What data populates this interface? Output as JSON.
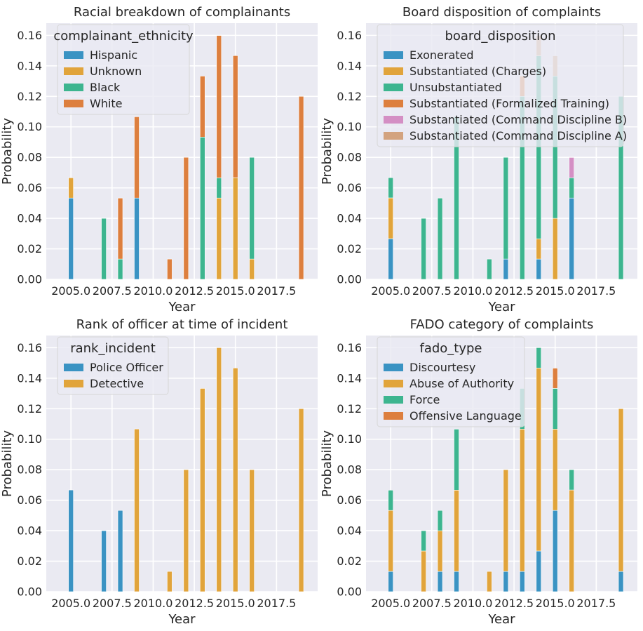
{
  "chart_data": [
    {
      "type": "bar",
      "title": "Racial breakdown of complainants",
      "xlabel": "Year",
      "ylabel": "Probability",
      "xlim": [
        2003.5,
        2020.0
      ],
      "ylim": [
        0,
        0.168
      ],
      "xticks": [
        2005.0,
        2007.5,
        2010.0,
        2012.5,
        2015.0,
        2017.5
      ],
      "xtick_labels": [
        "2005.0",
        "2007.5",
        "2010.0",
        "2012.5",
        "2015.0",
        "2017.5"
      ],
      "yticks": [
        0,
        0.02,
        0.04,
        0.06,
        0.08,
        0.1,
        0.12,
        0.14,
        0.16
      ],
      "ytick_labels": [
        "0.00",
        "0.02",
        "0.04",
        "0.06",
        "0.08",
        "0.10",
        "0.12",
        "0.14",
        "0.16"
      ],
      "grid": true,
      "legend_title": "complainant_ethnicity",
      "legend_position": "top-left",
      "bins": [
        2005,
        2007,
        2008,
        2009,
        2011,
        2012,
        2013,
        2014,
        2015,
        2016,
        2019
      ],
      "series": [
        {
          "name": "Hispanic",
          "color": "#3a93c3",
          "values": [
            0.0533,
            0,
            0,
            0.0533,
            0,
            0,
            0,
            0,
            0,
            0,
            0
          ]
        },
        {
          "name": "Unknown",
          "color": "#e1a43b",
          "values": [
            0.0133,
            0,
            0,
            0,
            0,
            0,
            0,
            0.0533,
            0.0667,
            0.0133,
            0
          ]
        },
        {
          "name": "Black",
          "color": "#3db58f",
          "values": [
            0,
            0.04,
            0.0133,
            0,
            0,
            0,
            0.0933,
            0.0133,
            0,
            0.0667,
            0
          ]
        },
        {
          "name": "White",
          "color": "#dd7f3e",
          "values": [
            0,
            0,
            0.04,
            0.0533,
            0.0133,
            0.08,
            0.04,
            0.0933,
            0.08,
            0,
            0.12
          ]
        }
      ]
    },
    {
      "type": "bar",
      "title": "Board disposition of complaints",
      "xlabel": "Year",
      "ylabel": "Probability",
      "xlim": [
        2003.5,
        2020.0
      ],
      "ylim": [
        0,
        0.168
      ],
      "xticks": [
        2005.0,
        2007.5,
        2010.0,
        2012.5,
        2015.0,
        2017.5
      ],
      "xtick_labels": [
        "2005.0",
        "2007.5",
        "2010.0",
        "2012.5",
        "2015.0",
        "2017.5"
      ],
      "yticks": [
        0,
        0.02,
        0.04,
        0.06,
        0.08,
        0.1,
        0.12,
        0.14,
        0.16
      ],
      "ytick_labels": [
        "0.00",
        "0.02",
        "0.04",
        "0.06",
        "0.08",
        "0.10",
        "0.12",
        "0.14",
        "0.16"
      ],
      "grid": true,
      "legend_title": "board_disposition",
      "legend_position": "top-right",
      "bins": [
        2005,
        2007,
        2008,
        2009,
        2011,
        2012,
        2013,
        2014,
        2015,
        2016,
        2019
      ],
      "series": [
        {
          "name": "Exonerated",
          "color": "#3a93c3",
          "values": [
            0.0267,
            0,
            0,
            0,
            0,
            0.0133,
            0,
            0.0133,
            0,
            0.0533,
            0
          ]
        },
        {
          "name": "Substantiated (Charges)",
          "color": "#e1a43b",
          "values": [
            0.0267,
            0,
            0,
            0,
            0,
            0,
            0,
            0.0133,
            0.04,
            0,
            0
          ]
        },
        {
          "name": "Unsubstantiated",
          "color": "#3db58f",
          "values": [
            0.0133,
            0.04,
            0.0533,
            0.1067,
            0.0133,
            0.0667,
            0.12,
            0.12,
            0.0933,
            0.0133,
            0.12
          ]
        },
        {
          "name": "Substantiated (Formalized Training)",
          "color": "#dd7f3e",
          "values": [
            0,
            0,
            0,
            0,
            0,
            0,
            0.0133,
            0,
            0,
            0,
            0
          ]
        },
        {
          "name": "Substantiated (Command Discipline B)",
          "color": "#d48fc4",
          "values": [
            0,
            0,
            0,
            0,
            0,
            0,
            0,
            0,
            0,
            0.0133,
            0
          ]
        },
        {
          "name": "Substantiated (Command Discipline A)",
          "color": "#d3a37f",
          "values": [
            0,
            0,
            0,
            0,
            0,
            0,
            0,
            0.0133,
            0.0133,
            0,
            0
          ]
        }
      ]
    },
    {
      "type": "bar",
      "title": "Rank of officer at time of incident",
      "xlabel": "Year",
      "ylabel": "Probability",
      "xlim": [
        2003.5,
        2020.0
      ],
      "ylim": [
        0,
        0.168
      ],
      "xticks": [
        2005.0,
        2007.5,
        2010.0,
        2012.5,
        2015.0,
        2017.5
      ],
      "xtick_labels": [
        "2005.0",
        "2007.5",
        "2010.0",
        "2012.5",
        "2015.0",
        "2017.5"
      ],
      "yticks": [
        0,
        0.02,
        0.04,
        0.06,
        0.08,
        0.1,
        0.12,
        0.14,
        0.16
      ],
      "ytick_labels": [
        "0.00",
        "0.02",
        "0.04",
        "0.06",
        "0.08",
        "0.10",
        "0.12",
        "0.14",
        "0.16"
      ],
      "grid": true,
      "legend_title": "rank_incident",
      "legend_position": "top-left",
      "bins": [
        2005,
        2007,
        2008,
        2009,
        2011,
        2012,
        2013,
        2014,
        2015,
        2016,
        2019
      ],
      "series": [
        {
          "name": "Police Officer",
          "color": "#3a93c3",
          "values": [
            0.0667,
            0.04,
            0.0533,
            0,
            0,
            0,
            0,
            0,
            0,
            0,
            0
          ]
        },
        {
          "name": "Detective",
          "color": "#e1a43b",
          "values": [
            0,
            0,
            0,
            0.1067,
            0.0133,
            0.08,
            0.1333,
            0.16,
            0.1467,
            0.08,
            0.12
          ]
        }
      ]
    },
    {
      "type": "bar",
      "title": "FADO category of complaints",
      "xlabel": "Year",
      "ylabel": "Probability",
      "xlim": [
        2003.5,
        2020.0
      ],
      "ylim": [
        0,
        0.168
      ],
      "xticks": [
        2005.0,
        2007.5,
        2010.0,
        2012.5,
        2015.0,
        2017.5
      ],
      "xtick_labels": [
        "2005.0",
        "2007.5",
        "2010.0",
        "2012.5",
        "2015.0",
        "2017.5"
      ],
      "yticks": [
        0,
        0.02,
        0.04,
        0.06,
        0.08,
        0.1,
        0.12,
        0.14,
        0.16
      ],
      "ytick_labels": [
        "0.00",
        "0.02",
        "0.04",
        "0.06",
        "0.08",
        "0.10",
        "0.12",
        "0.14",
        "0.16"
      ],
      "grid": true,
      "legend_title": "fado_type",
      "legend_position": "top-left",
      "bins": [
        2005,
        2007,
        2008,
        2009,
        2011,
        2012,
        2013,
        2014,
        2015,
        2016,
        2019
      ],
      "series": [
        {
          "name": "Discourtesy",
          "color": "#3a93c3",
          "values": [
            0.0133,
            0,
            0.0133,
            0.0133,
            0,
            0.0133,
            0.0133,
            0.0267,
            0.0533,
            0,
            0.0133
          ]
        },
        {
          "name": "Abuse of Authority",
          "color": "#e1a43b",
          "values": [
            0.04,
            0.0267,
            0.0267,
            0.0533,
            0.0133,
            0.0667,
            0.0933,
            0.12,
            0.0533,
            0.0667,
            0.1067
          ]
        },
        {
          "name": "Force",
          "color": "#3db58f",
          "values": [
            0.0133,
            0.0133,
            0.0133,
            0.04,
            0,
            0,
            0.0267,
            0.0133,
            0.0267,
            0.0133,
            0
          ]
        },
        {
          "name": "Offensive Language",
          "color": "#dd7f3e",
          "values": [
            0,
            0,
            0,
            0,
            0,
            0,
            0,
            0,
            0.0133,
            0,
            0
          ]
        }
      ]
    }
  ]
}
